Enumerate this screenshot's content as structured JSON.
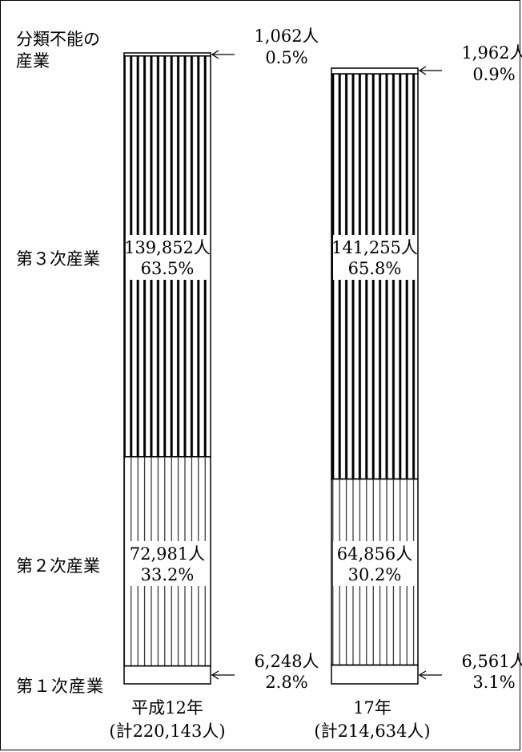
{
  "chart_data": {
    "type": "bar",
    "stacked": true,
    "percent_stacked": true,
    "categories": [
      "平成12年",
      "17年"
    ],
    "totals": [
      "(計220,143人)",
      "(計214,634人)"
    ],
    "series": [
      {
        "name": "第１次産業",
        "values": [
          6248,
          6561
        ],
        "percent": [
          2.8,
          3.1
        ],
        "value_labels": [
          "6,248人",
          "6,561人"
        ],
        "percent_labels": [
          "2.8%",
          "3.1%"
        ],
        "pattern": "none"
      },
      {
        "name": "第２次産業",
        "values": [
          72981,
          64856
        ],
        "percent": [
          33.2,
          30.2
        ],
        "value_labels": [
          "72,981人",
          "64,856人"
        ],
        "percent_labels": [
          "33.2%",
          "30.2%"
        ],
        "pattern": "thin-vertical"
      },
      {
        "name": "第３次産業",
        "values": [
          139852,
          141255
        ],
        "percent": [
          63.5,
          65.8
        ],
        "value_labels": [
          "139,852人",
          "141,255人"
        ],
        "percent_labels": [
          "63.5%",
          "65.8%"
        ],
        "pattern": "thick-vertical"
      },
      {
        "name": "分類不能の産業",
        "values": [
          1062,
          1962
        ],
        "percent": [
          0.5,
          0.9
        ],
        "value_labels": [
          "1,062人",
          "1,962人"
        ],
        "percent_labels": [
          "0.5%",
          "0.9%"
        ],
        "pattern": "none"
      }
    ],
    "colors": {
      "stroke": "#000000",
      "fill": "#ffffff"
    }
  }
}
